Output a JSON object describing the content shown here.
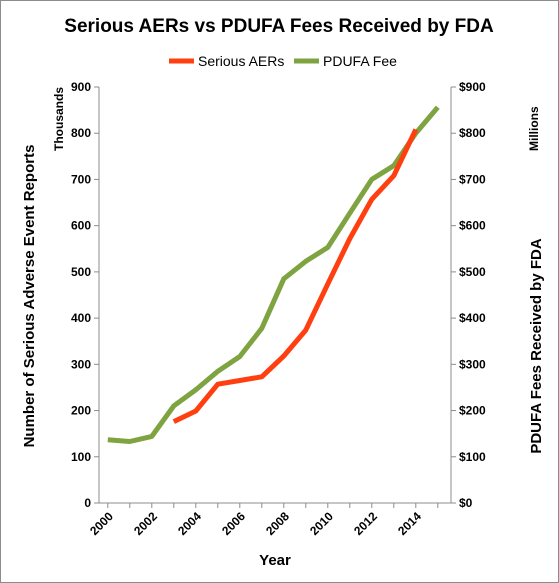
{
  "chart_data": {
    "type": "line",
    "title": "Serious AERs vs PDUFA Fees Received by FDA",
    "xlabel": "Year",
    "ylabel_left": "Number of Serious Adverse Event Reports",
    "ylabel_right": "PDUFA Fees Received by FDA",
    "left_unit": "Thousands",
    "right_unit": "Millions",
    "x_ticks": [
      "2000",
      "2002",
      "2004",
      "2006",
      "2008",
      "2010",
      "2012",
      "2014"
    ],
    "x_tick_values": [
      2000,
      2002,
      2004,
      2006,
      2008,
      2010,
      2012,
      2014
    ],
    "xlim": [
      1999.6,
      2015.6
    ],
    "left_ticks": [
      "0",
      "100",
      "200",
      "300",
      "400",
      "500",
      "600",
      "700",
      "800",
      "900"
    ],
    "left_tick_values": [
      0,
      100,
      200,
      300,
      400,
      500,
      600,
      700,
      800,
      900
    ],
    "right_ticks": [
      "$0",
      "$100",
      "$200",
      "$300",
      "$400",
      "$500",
      "$600",
      "$700",
      "$800",
      "$900"
    ],
    "ylim": [
      0,
      900
    ],
    "legend_position": "top-center",
    "grid": false,
    "series": [
      {
        "name": "Serious AERs",
        "color": "#ff3f0f",
        "axis": "left",
        "x": [
          2003,
          2004,
          2005,
          2006,
          2007,
          2008,
          2009,
          2010,
          2011,
          2012,
          2013,
          2014
        ],
        "y": [
          176,
          199,
          257,
          265,
          273,
          318,
          374,
          474,
          572,
          657,
          708,
          808
        ]
      },
      {
        "name": "PDUFA Fee",
        "color": "#7ea340",
        "axis": "right",
        "x": [
          2000,
          2001,
          2002,
          2003,
          2004,
          2005,
          2006,
          2007,
          2008,
          2009,
          2010,
          2011,
          2012,
          2013,
          2014,
          2015
        ],
        "y": [
          137,
          133,
          144,
          210,
          245,
          285,
          317,
          378,
          485,
          523,
          553,
          627,
          700,
          730,
          800,
          856
        ]
      }
    ]
  }
}
